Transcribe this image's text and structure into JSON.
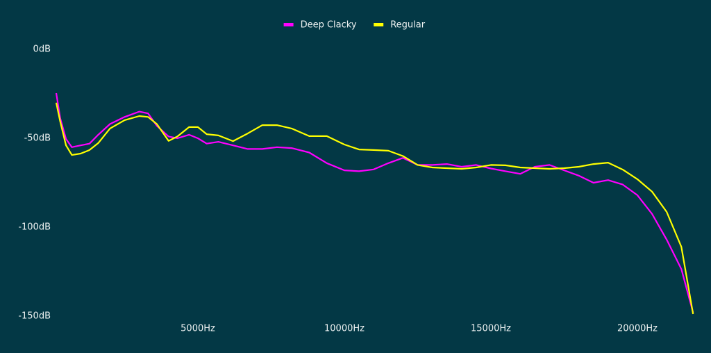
{
  "chart_data": {
    "type": "line",
    "x": [
      166,
      300,
      500,
      700,
      1000,
      1300,
      1600,
      2000,
      2500,
      3000,
      3300,
      3600,
      4000,
      4300,
      4700,
      5000,
      5300,
      5700,
      6200,
      6700,
      7200,
      7700,
      8200,
      8800,
      9400,
      10000,
      10500,
      11000,
      11500,
      12000,
      12500,
      13000,
      13500,
      14000,
      14500,
      15000,
      15500,
      16000,
      16500,
      17000,
      17500,
      18000,
      18500,
      19000,
      19500,
      20000,
      20500,
      21000,
      21500,
      21900
    ],
    "series": [
      {
        "name": "Deep Clacky",
        "color": "#ff00ff",
        "values": [
          -24.6,
          -38.7,
          -50.4,
          -55,
          -54,
          -53,
          -48,
          -42,
          -38,
          -35,
          -36,
          -43,
          -49,
          -50,
          -48,
          -50,
          -53,
          -52,
          -54,
          -56,
          -56,
          -55,
          -55.5,
          -58,
          -64,
          -68,
          -68.5,
          -67.5,
          -64,
          -61,
          -65,
          -65,
          -64.5,
          -66,
          -65,
          -67,
          -68.5,
          -70,
          -66,
          -65,
          -68,
          -71,
          -75,
          -73.5,
          -76,
          -82,
          -92.5,
          -107,
          -123.5,
          -148
        ]
      },
      {
        "name": "Regular",
        "color": "#ffff00",
        "values": [
          -30,
          -40.6,
          -54,
          -59.4,
          -58.6,
          -56.6,
          -52.7,
          -44.5,
          -39.8,
          -37.5,
          -38,
          -42,
          -51.5,
          -49,
          -43.7,
          -43.7,
          -47.7,
          -48.4,
          -51.6,
          -47.3,
          -42.6,
          -42.6,
          -44.5,
          -48.8,
          -48.8,
          -53.5,
          -56.3,
          -56.6,
          -57,
          -60,
          -65,
          -66.4,
          -66.8,
          -67.2,
          -66.4,
          -65,
          -65.2,
          -66.4,
          -66.8,
          -67.2,
          -66.8,
          -66,
          -64.5,
          -63.7,
          -67.6,
          -73,
          -80,
          -91.4,
          -111,
          -148.8
        ]
      }
    ],
    "xlim": [
      0,
      22000
    ],
    "xticks": [
      {
        "value": 5000,
        "label": "5000Hz"
      },
      {
        "value": 10000,
        "label": "10000Hz"
      },
      {
        "value": 15000,
        "label": "15000Hz"
      },
      {
        "value": 20000,
        "label": "20000Hz"
      }
    ],
    "ylim": [
      -150,
      0
    ],
    "yticks": [
      {
        "value": 0,
        "label": "0dB"
      },
      {
        "value": -50,
        "label": "-50dB"
      },
      {
        "value": -100,
        "label": "-100dB"
      },
      {
        "value": -150,
        "label": "-150dB"
      }
    ],
    "grid": false,
    "legend": "top"
  }
}
